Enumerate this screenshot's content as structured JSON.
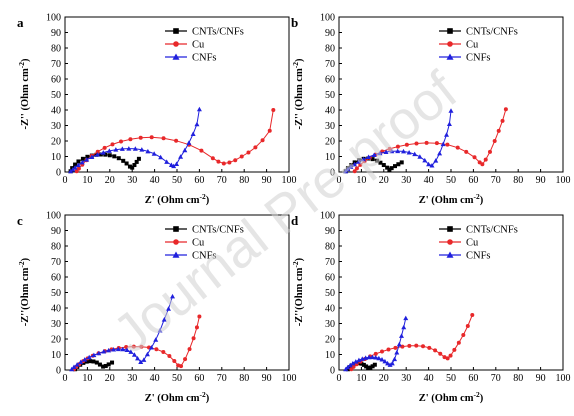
{
  "watermark": "Journal Pre-proof",
  "chart_data": [
    {
      "type": "scatter",
      "panel": "a",
      "xlabel_main": "Z' (Ohm cm",
      "xlabel_sup": "-2",
      "xlabel_end": ")",
      "ylabel_main": "-Z'' (Ohm cm",
      "ylabel_sup": "-2",
      "ylabel_end": ")",
      "xlim": [
        0,
        100
      ],
      "ylim": [
        0,
        100
      ],
      "xticks": [
        "0",
        "10",
        "20",
        "30",
        "40",
        "50",
        "60",
        "70",
        "80",
        "90",
        "100"
      ],
      "yticks": [
        "0",
        "10",
        "20",
        "30",
        "40",
        "50",
        "60",
        "70",
        "80",
        "90",
        "100"
      ],
      "legend_position": "top-right",
      "series": [
        {
          "name": "CNTs/CNFs",
          "color": "#000000",
          "marker": "square",
          "x": [
            2.5,
            3.2,
            4.5,
            6,
            8,
            10,
            12,
            14,
            16,
            18,
            20,
            22,
            24,
            26,
            27.5,
            29,
            30,
            31,
            32,
            33
          ],
          "y": [
            0.5,
            2.5,
            4.8,
            6.8,
            8.5,
            9.8,
            10.6,
            11.1,
            11.3,
            11.2,
            10.8,
            10.1,
            8.9,
            7.2,
            5.5,
            3.5,
            2.8,
            4.5,
            6.5,
            8.5
          ]
        },
        {
          "name": "Cu",
          "color": "#e8282a",
          "marker": "circle",
          "x": [
            5.2,
            6.2,
            7.7,
            9.6,
            11.9,
            14.6,
            17.7,
            21.2,
            25,
            29.2,
            33.8,
            38.7,
            44,
            49.6,
            55.4,
            60.9,
            66,
            68.5,
            70.9,
            73.4,
            76,
            78.9,
            81.9,
            85,
            88.2,
            91.4,
            93
          ],
          "y": [
            0.5,
            2.2,
            4.7,
            7.6,
            10.4,
            13.1,
            15.6,
            17.8,
            19.7,
            21.1,
            22.1,
            22.4,
            21.8,
            20.2,
            17.6,
            13.8,
            8.9,
            6.7,
            5.5,
            6.1,
            7.6,
            10,
            12.6,
            15.9,
            20.5,
            26.6,
            40
          ]
        },
        {
          "name": "CNFs",
          "color": "#2020dd",
          "marker": "triangle",
          "x": [
            2.5,
            3.5,
            4.5,
            5.9,
            7.7,
            9.7,
            12,
            14.5,
            17.1,
            19.8,
            22.7,
            25.6,
            28.5,
            31.4,
            34.3,
            37,
            39.8,
            42.7,
            45.4,
            47.5,
            48.5,
            49.8,
            51.6,
            53.5,
            55.3,
            57.2,
            58.9,
            60
          ],
          "y": [
            0.5,
            1.6,
            2.8,
            4.4,
            6.2,
            8,
            9.7,
            11.2,
            12.5,
            13.6,
            14.4,
            14.9,
            15.1,
            15,
            14.4,
            13.3,
            11.8,
            9.5,
            6.5,
            4.5,
            3.8,
            5.2,
            9.8,
            14,
            18.8,
            24.5,
            30.8,
            40.5
          ]
        }
      ]
    },
    {
      "type": "scatter",
      "panel": "b",
      "xlabel_main": "Z' (Ohm cm",
      "xlabel_sup": "-2",
      "xlabel_end": ")",
      "ylabel_main": "-Z'' (Ohm cm",
      "ylabel_sup": "-2",
      "ylabel_end": ")",
      "xlim": [
        0,
        100
      ],
      "ylim": [
        0,
        100
      ],
      "xticks": [
        "0",
        "10",
        "20",
        "30",
        "40",
        "50",
        "60",
        "70",
        "80",
        "90",
        "100"
      ],
      "yticks": [
        "0",
        "10",
        "20",
        "30",
        "40",
        "50",
        "60",
        "70",
        "80",
        "90",
        "100"
      ],
      "legend_position": "top-right",
      "series": [
        {
          "name": "CNTs/CNFs",
          "color": "#000000",
          "marker": "square",
          "x": [
            3,
            4,
            5.5,
            7,
            9,
            11,
            13,
            15,
            17,
            18.5,
            20,
            21.5,
            22.5,
            23.5,
            25,
            26.5,
            28
          ],
          "y": [
            0.5,
            2.5,
            4.5,
            6.2,
            7.6,
            8.5,
            8.7,
            8.3,
            7.3,
            6,
            4.5,
            2.8,
            1.5,
            2.5,
            3.8,
            5,
            6.2
          ]
        },
        {
          "name": "Cu",
          "color": "#e8282a",
          "marker": "circle",
          "x": [
            7,
            8,
            9.5,
            11.4,
            13.7,
            16.3,
            19.3,
            22.6,
            26.3,
            30.3,
            34.6,
            39.1,
            43.7,
            48.4,
            53,
            56.8,
            60.5,
            62.8,
            64,
            65.5,
            67.4,
            69.5,
            71.3,
            73,
            74.5
          ],
          "y": [
            0.5,
            2.3,
            4.6,
            6.9,
            9.1,
            11.2,
            13.2,
            14.9,
            16.4,
            17.6,
            18.4,
            18.8,
            18.6,
            17.7,
            15.7,
            13,
            9.5,
            6.2,
            5,
            8,
            13,
            20,
            26.5,
            33,
            40.5
          ]
        },
        {
          "name": "CNFs",
          "color": "#2020dd",
          "marker": "triangle",
          "x": [
            3,
            4,
            5.3,
            6.9,
            8.8,
            10.9,
            13.2,
            15.7,
            18.3,
            21,
            23.6,
            26.2,
            28.8,
            31.3,
            33.8,
            36.1,
            38.3,
            40,
            41.5,
            43.2,
            44.9,
            46.5,
            48,
            49.3,
            50
          ],
          "y": [
            0.5,
            1.8,
            3.3,
            4.9,
            6.6,
            8.2,
            9.7,
            11,
            12.1,
            12.9,
            13.4,
            13.5,
            13.3,
            12.6,
            11.5,
            9.8,
            7.5,
            5,
            4.2,
            7.3,
            12,
            18,
            24,
            31,
            39.5
          ]
        }
      ]
    },
    {
      "type": "scatter",
      "panel": "c",
      "xlabel_main": "Z' (Ohm cm",
      "xlabel_sup": "-2",
      "xlabel_end": ")",
      "ylabel_main": "-Z''(Ohm cm",
      "ylabel_sup": "-2",
      "ylabel_end": ")",
      "xlim": [
        0,
        100
      ],
      "ylim": [
        0,
        100
      ],
      "xticks": [
        "0",
        "10",
        "20",
        "30",
        "40",
        "50",
        "60",
        "70",
        "80",
        "90",
        "100"
      ],
      "yticks": [
        "0",
        "10",
        "20",
        "30",
        "40",
        "50",
        "60",
        "70",
        "80",
        "90",
        "100"
      ],
      "legend_position": "top-right",
      "series": [
        {
          "name": "CNTs/CNFs",
          "color": "#000000",
          "marker": "square",
          "x": [
            4.5,
            5.5,
            6.8,
            8.2,
            9.7,
            11.2,
            12.7,
            14.2,
            15.6,
            17,
            18.2,
            19.5,
            21
          ],
          "y": [
            0.5,
            2,
            3.4,
            4.6,
            5.4,
            5.7,
            5.5,
            4.8,
            3.5,
            2.2,
            2.6,
            3.6,
            4.8
          ]
        },
        {
          "name": "Cu",
          "color": "#e8282a",
          "marker": "circle",
          "x": [
            4,
            5,
            6.4,
            8.1,
            10.1,
            12.4,
            15,
            17.8,
            20.8,
            24,
            27.3,
            30.7,
            34.1,
            37.5,
            40.8,
            43.9,
            46.6,
            48.8,
            50.5,
            51.8,
            53.6,
            55.6,
            57.4,
            58.9,
            60
          ],
          "y": [
            0.5,
            2,
            3.8,
            5.7,
            7.5,
            9.2,
            10.8,
            12.2,
            13.3,
            14.2,
            14.8,
            15.1,
            15,
            14.5,
            13.4,
            11.6,
            9,
            5.8,
            3,
            2.5,
            7,
            13.5,
            20.5,
            27.5,
            34.5
          ]
        },
        {
          "name": "CNFs",
          "color": "#2020dd",
          "marker": "triangle",
          "x": [
            3,
            4,
            5.4,
            7,
            8.8,
            10.8,
            12.9,
            15.1,
            17.3,
            19.5,
            21.7,
            23.8,
            25.8,
            27.7,
            29.4,
            31,
            32.4,
            33.8,
            35.2,
            36.8,
            38.6,
            40.5,
            42.4,
            44.3,
            46.2,
            48
          ],
          "y": [
            0.5,
            1.9,
            3.5,
            5.1,
            6.7,
            8.2,
            9.6,
            10.8,
            11.9,
            12.7,
            13.2,
            13.5,
            13.4,
            12.9,
            11.7,
            9.8,
            7.5,
            5.2,
            6.5,
            10.2,
            14.5,
            19.5,
            25.5,
            32.5,
            39.5,
            47.5
          ]
        }
      ]
    },
    {
      "type": "scatter",
      "panel": "d",
      "xlabel_main": "Z' (Ohm cm",
      "xlabel_sup": "-2",
      "xlabel_end": ")",
      "ylabel_main": "-Z''(Ohm cm",
      "ylabel_sup": "-2",
      "ylabel_end": ")",
      "xlim": [
        0,
        100
      ],
      "ylim": [
        0,
        100
      ],
      "xticks": [
        "0",
        "10",
        "20",
        "30",
        "40",
        "50",
        "60",
        "70",
        "80",
        "90",
        "100"
      ],
      "yticks": [
        "0",
        "10",
        "20",
        "30",
        "40",
        "50",
        "60",
        "70",
        "80",
        "90",
        "100"
      ],
      "legend_position": "top-right",
      "series": [
        {
          "name": "CNTs/CNFs",
          "color": "#000000",
          "marker": "square",
          "x": [
            4,
            4.8,
            5.7,
            6.7,
            7.8,
            8.9,
            10,
            11.1,
            12.1,
            13,
            14,
            15,
            16
          ],
          "y": [
            0.5,
            1.8,
            2.9,
            3.8,
            4.3,
            4.4,
            4.1,
            3.3,
            2.3,
            1.3,
            1.6,
            2.4,
            3.4
          ]
        },
        {
          "name": "Cu",
          "color": "#e8282a",
          "marker": "circle",
          "x": [
            5.5,
            6.5,
            7.9,
            9.6,
            11.6,
            13.9,
            16.4,
            19.2,
            22.1,
            25.2,
            28.3,
            31.4,
            34.5,
            37.5,
            40.3,
            42.9,
            45.2,
            47.1,
            48.5,
            49.8,
            51.5,
            53.5,
            55.5,
            57.5,
            59.5
          ],
          "y": [
            0.5,
            2,
            3.7,
            5.4,
            7.1,
            8.8,
            10.4,
            11.9,
            13.2,
            14.3,
            15.1,
            15.6,
            15.7,
            15.3,
            14.3,
            12.7,
            10.5,
            8.3,
            7.5,
            9.3,
            13,
            17.6,
            22.6,
            28.4,
            35.5
          ]
        },
        {
          "name": "CNFs",
          "color": "#2020dd",
          "marker": "triangle",
          "x": [
            3,
            3.9,
            5,
            6.2,
            7.5,
            8.9,
            10.4,
            11.9,
            13.4,
            14.9,
            16.4,
            17.8,
            19.2,
            20.5,
            21.7,
            22.8,
            23.8,
            24.8,
            25.8,
            26.9,
            27.9,
            28.9,
            29.8
          ],
          "y": [
            0.5,
            1.8,
            3.1,
            4.3,
            5.4,
            6.4,
            7.2,
            7.8,
            8.2,
            8.3,
            8.1,
            7.6,
            6.8,
            5.6,
            4.3,
            3.3,
            4.3,
            7,
            11.3,
            16.5,
            22,
            27.6,
            33.5
          ]
        }
      ]
    }
  ]
}
